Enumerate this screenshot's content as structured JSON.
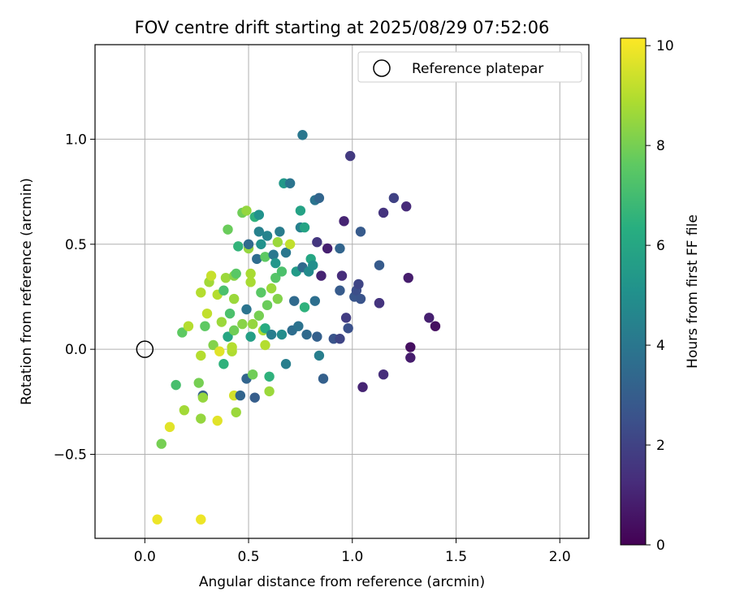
{
  "chart_data": {
    "type": "scatter",
    "title": "FOV centre drift starting at 2025/08/29 07:52:06",
    "xlabel": "Angular distance from reference (arcmin)",
    "ylabel": "Rotation from reference (arcmin)",
    "xlim": [
      -0.24,
      2.14
    ],
    "ylim": [
      -0.9,
      1.45
    ],
    "xticks": [
      0.0,
      0.5,
      1.0,
      1.5,
      2.0
    ],
    "xtick_labels": [
      "0.0",
      "0.5",
      "1.0",
      "1.5",
      "2.0"
    ],
    "yticks": [
      -0.5,
      0.0,
      0.5,
      1.0
    ],
    "ytick_labels": [
      "−0.5",
      "0.0",
      "0.5",
      "1.0"
    ],
    "grid": true,
    "legend_position": "top-right",
    "legend_label": "Reference platepar",
    "reference_point": {
      "x": 0.0,
      "y": 0.0
    },
    "colorbar": {
      "label": "Hours from first FF file",
      "range": [
        0,
        10.15
      ],
      "ticks": [
        0,
        2,
        4,
        6,
        8,
        10
      ],
      "tick_labels": [
        "0",
        "2",
        "4",
        "6",
        "8",
        "10"
      ],
      "colormap": "viridis"
    },
    "points": [
      {
        "x": 0.06,
        "y": -0.81,
        "h": 9.9
      },
      {
        "x": 0.27,
        "y": -0.81,
        "h": 9.9
      },
      {
        "x": 0.08,
        "y": -0.45,
        "h": 8.0
      },
      {
        "x": 0.12,
        "y": -0.37,
        "h": 9.7
      },
      {
        "x": 0.15,
        "y": -0.17,
        "h": 7.1
      },
      {
        "x": 0.19,
        "y": -0.29,
        "h": 8.7
      },
      {
        "x": 0.18,
        "y": 0.08,
        "h": 7.6
      },
      {
        "x": 0.21,
        "y": 0.11,
        "h": 9.0
      },
      {
        "x": 0.26,
        "y": -0.16,
        "h": 8.0
      },
      {
        "x": 0.27,
        "y": -0.33,
        "h": 8.5
      },
      {
        "x": 0.28,
        "y": -0.22,
        "h": 3.0
      },
      {
        "x": 0.28,
        "y": -0.23,
        "h": 8.5
      },
      {
        "x": 0.29,
        "y": 0.11,
        "h": 7.6
      },
      {
        "x": 0.27,
        "y": -0.03,
        "h": 9.0
      },
      {
        "x": 0.27,
        "y": 0.27,
        "h": 9.0
      },
      {
        "x": 0.3,
        "y": 0.17,
        "h": 9.2
      },
      {
        "x": 0.31,
        "y": 0.32,
        "h": 8.7
      },
      {
        "x": 0.32,
        "y": 0.35,
        "h": 9.3
      },
      {
        "x": 0.33,
        "y": 0.02,
        "h": 8.2
      },
      {
        "x": 0.35,
        "y": -0.34,
        "h": 9.7
      },
      {
        "x": 0.35,
        "y": 0.26,
        "h": 9.0
      },
      {
        "x": 0.36,
        "y": -0.01,
        "h": 9.7
      },
      {
        "x": 0.37,
        "y": 0.13,
        "h": 8.6
      },
      {
        "x": 0.38,
        "y": 0.28,
        "h": 7.2
      },
      {
        "x": 0.38,
        "y": -0.07,
        "h": 6.5
      },
      {
        "x": 0.39,
        "y": 0.34,
        "h": 8.6
      },
      {
        "x": 0.4,
        "y": 0.57,
        "h": 7.8
      },
      {
        "x": 0.4,
        "y": 0.06,
        "h": 6.0
      },
      {
        "x": 0.41,
        "y": 0.17,
        "h": 7.2
      },
      {
        "x": 0.42,
        "y": -0.01,
        "h": 8.9
      },
      {
        "x": 0.42,
        "y": 0.01,
        "h": 9.0
      },
      {
        "x": 0.43,
        "y": 0.09,
        "h": 7.9
      },
      {
        "x": 0.43,
        "y": 0.24,
        "h": 8.6
      },
      {
        "x": 0.43,
        "y": 0.35,
        "h": 8.3
      },
      {
        "x": 0.44,
        "y": 0.36,
        "h": 7.5
      },
      {
        "x": 0.43,
        "y": -0.22,
        "h": 9.5
      },
      {
        "x": 0.44,
        "y": -0.3,
        "h": 8.6
      },
      {
        "x": 0.45,
        "y": 0.49,
        "h": 6.6
      },
      {
        "x": 0.46,
        "y": -0.22,
        "h": 3.3
      },
      {
        "x": 0.47,
        "y": 0.12,
        "h": 8.3
      },
      {
        "x": 0.47,
        "y": 0.65,
        "h": 7.9
      },
      {
        "x": 0.49,
        "y": 0.66,
        "h": 8.5
      },
      {
        "x": 0.49,
        "y": 0.19,
        "h": 3.9
      },
      {
        "x": 0.49,
        "y": -0.14,
        "h": 3.3
      },
      {
        "x": 0.5,
        "y": 0.48,
        "h": 8.5
      },
      {
        "x": 0.5,
        "y": 0.5,
        "h": 3.5
      },
      {
        "x": 0.51,
        "y": 0.36,
        "h": 8.8
      },
      {
        "x": 0.51,
        "y": 0.32,
        "h": 8.8
      },
      {
        "x": 0.51,
        "y": 0.06,
        "h": 5.7
      },
      {
        "x": 0.52,
        "y": -0.12,
        "h": 7.9
      },
      {
        "x": 0.52,
        "y": 0.12,
        "h": 8.5
      },
      {
        "x": 0.53,
        "y": -0.23,
        "h": 3.0
      },
      {
        "x": 0.53,
        "y": 0.63,
        "h": 6.5
      },
      {
        "x": 0.54,
        "y": 0.43,
        "h": 3.6
      },
      {
        "x": 0.55,
        "y": 0.56,
        "h": 4.4
      },
      {
        "x": 0.55,
        "y": 0.64,
        "h": 5.1
      },
      {
        "x": 0.55,
        "y": 0.16,
        "h": 8.0
      },
      {
        "x": 0.56,
        "y": 0.27,
        "h": 7.5
      },
      {
        "x": 0.56,
        "y": 0.5,
        "h": 5.1
      },
      {
        "x": 0.57,
        "y": 0.09,
        "h": 8.8
      },
      {
        "x": 0.58,
        "y": 0.02,
        "h": 9.0
      },
      {
        "x": 0.58,
        "y": 0.1,
        "h": 6.2
      },
      {
        "x": 0.58,
        "y": 0.44,
        "h": 7.6
      },
      {
        "x": 0.59,
        "y": 0.21,
        "h": 7.8
      },
      {
        "x": 0.59,
        "y": 0.54,
        "h": 4.5
      },
      {
        "x": 0.6,
        "y": -0.2,
        "h": 8.6
      },
      {
        "x": 0.6,
        "y": -0.13,
        "h": 6.5
      },
      {
        "x": 0.61,
        "y": 0.29,
        "h": 8.6
      },
      {
        "x": 0.61,
        "y": 0.07,
        "h": 4.3
      },
      {
        "x": 0.62,
        "y": 0.45,
        "h": 4.0
      },
      {
        "x": 0.63,
        "y": 0.34,
        "h": 7.4
      },
      {
        "x": 0.63,
        "y": 0.41,
        "h": 5.3
      },
      {
        "x": 0.64,
        "y": 0.51,
        "h": 8.6
      },
      {
        "x": 0.64,
        "y": 0.24,
        "h": 8.2
      },
      {
        "x": 0.65,
        "y": 0.56,
        "h": 4.2
      },
      {
        "x": 0.66,
        "y": 0.37,
        "h": 7.2
      },
      {
        "x": 0.66,
        "y": 0.07,
        "h": 4.9
      },
      {
        "x": 0.67,
        "y": 0.79,
        "h": 5.4
      },
      {
        "x": 0.68,
        "y": 0.46,
        "h": 4.0
      },
      {
        "x": 0.68,
        "y": -0.07,
        "h": 4.3
      },
      {
        "x": 0.7,
        "y": 0.79,
        "h": 3.9
      },
      {
        "x": 0.7,
        "y": 0.5,
        "h": 9.2
      },
      {
        "x": 0.71,
        "y": 0.09,
        "h": 3.6
      },
      {
        "x": 0.72,
        "y": 0.23,
        "h": 3.5
      },
      {
        "x": 0.73,
        "y": 0.37,
        "h": 5.5
      },
      {
        "x": 0.74,
        "y": 0.11,
        "h": 3.8
      },
      {
        "x": 0.75,
        "y": 0.58,
        "h": 4.4
      },
      {
        "x": 0.75,
        "y": 0.66,
        "h": 5.8
      },
      {
        "x": 0.76,
        "y": 1.02,
        "h": 4.0
      },
      {
        "x": 0.76,
        "y": 0.39,
        "h": 3.5
      },
      {
        "x": 0.77,
        "y": 0.58,
        "h": 5.9
      },
      {
        "x": 0.77,
        "y": 0.2,
        "h": 6.5
      },
      {
        "x": 0.78,
        "y": 0.07,
        "h": 3.5
      },
      {
        "x": 0.79,
        "y": 0.37,
        "h": 4.8
      },
      {
        "x": 0.8,
        "y": 0.43,
        "h": 6.0
      },
      {
        "x": 0.81,
        "y": 0.4,
        "h": 5.0
      },
      {
        "x": 0.82,
        "y": 0.71,
        "h": 3.9
      },
      {
        "x": 0.82,
        "y": 0.23,
        "h": 3.7
      },
      {
        "x": 0.83,
        "y": 0.06,
        "h": 3.1
      },
      {
        "x": 0.83,
        "y": 0.51,
        "h": 1.6
      },
      {
        "x": 0.84,
        "y": 0.72,
        "h": 3.3
      },
      {
        "x": 0.84,
        "y": -0.03,
        "h": 4.3
      },
      {
        "x": 0.85,
        "y": 0.35,
        "h": 1.0
      },
      {
        "x": 0.86,
        "y": -0.14,
        "h": 3.1
      },
      {
        "x": 0.88,
        "y": 0.48,
        "h": 0.9
      },
      {
        "x": 0.91,
        "y": 0.05,
        "h": 2.6
      },
      {
        "x": 0.94,
        "y": 0.48,
        "h": 3.3
      },
      {
        "x": 0.94,
        "y": 0.28,
        "h": 2.9
      },
      {
        "x": 0.94,
        "y": 0.05,
        "h": 2.1
      },
      {
        "x": 0.95,
        "y": 0.35,
        "h": 1.3
      },
      {
        "x": 0.96,
        "y": 0.61,
        "h": 1.0
      },
      {
        "x": 0.97,
        "y": 0.15,
        "h": 1.8
      },
      {
        "x": 0.98,
        "y": 0.1,
        "h": 2.5
      },
      {
        "x": 0.99,
        "y": 0.92,
        "h": 1.7
      },
      {
        "x": 1.01,
        "y": 0.25,
        "h": 2.7
      },
      {
        "x": 1.02,
        "y": 0.28,
        "h": 2.4
      },
      {
        "x": 1.03,
        "y": 0.31,
        "h": 2.1
      },
      {
        "x": 1.04,
        "y": 0.56,
        "h": 2.9
      },
      {
        "x": 1.04,
        "y": 0.24,
        "h": 2.6
      },
      {
        "x": 1.05,
        "y": -0.18,
        "h": 1.0
      },
      {
        "x": 1.13,
        "y": 0.4,
        "h": 2.9
      },
      {
        "x": 1.13,
        "y": 0.22,
        "h": 2.0
      },
      {
        "x": 1.13,
        "y": 0.22,
        "h": 1.5
      },
      {
        "x": 1.15,
        "y": 0.65,
        "h": 1.5
      },
      {
        "x": 1.15,
        "y": -0.12,
        "h": 1.3
      },
      {
        "x": 1.2,
        "y": 0.72,
        "h": 2.0
      },
      {
        "x": 1.26,
        "y": 0.68,
        "h": 1.2
      },
      {
        "x": 1.27,
        "y": 0.34,
        "h": 0.8
      },
      {
        "x": 1.28,
        "y": 0.01,
        "h": 0.4
      },
      {
        "x": 1.28,
        "y": -0.04,
        "h": 0.8
      },
      {
        "x": 1.37,
        "y": 0.15,
        "h": 0.9
      },
      {
        "x": 1.4,
        "y": 0.11,
        "h": 0.4
      }
    ]
  }
}
